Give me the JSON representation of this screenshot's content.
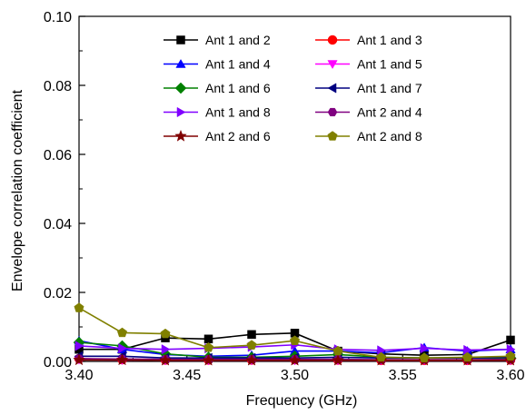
{
  "chart_data": {
    "type": "line",
    "xlabel": "Frequency (GHz)",
    "ylabel": "Envelope correlation coefficient",
    "xlim": [
      3.4,
      3.6
    ],
    "ylim": [
      0,
      0.1
    ],
    "x_ticks": [
      "3.40",
      "3.45",
      "3.50",
      "3.55",
      "3.60"
    ],
    "y_ticks": [
      "0.00",
      "0.02",
      "0.04",
      "0.06",
      "0.08",
      "0.10"
    ],
    "grid": false,
    "legend_position": "top-center",
    "x": [
      3.4,
      3.42,
      3.44,
      3.46,
      3.48,
      3.5,
      3.52,
      3.54,
      3.56,
      3.58,
      3.6
    ],
    "series": [
      {
        "name": "Ant 1 and 2",
        "color": "#000000",
        "marker": "square",
        "values": [
          0.0035,
          0.0035,
          0.0068,
          0.0065,
          0.0078,
          0.0082,
          0.003,
          0.0022,
          0.0018,
          0.002,
          0.0062
        ]
      },
      {
        "name": "Ant 1 and 3",
        "color": "#ff0000",
        "marker": "circle",
        "values": [
          0.0008,
          0.0005,
          0.0004,
          0.0004,
          0.0004,
          0.0005,
          0.0004,
          0.0003,
          0.0003,
          0.0003,
          0.0004
        ]
      },
      {
        "name": "Ant 1 and 4",
        "color": "#0000ff",
        "marker": "triangle-up",
        "values": [
          0.006,
          0.0035,
          0.002,
          0.0015,
          0.0018,
          0.003,
          0.003,
          0.0025,
          0.004,
          0.003,
          0.0035
        ]
      },
      {
        "name": "Ant 1 and 5",
        "color": "#ff00ff",
        "marker": "triangle-down",
        "values": [
          0.0005,
          0.0004,
          0.0003,
          0.0003,
          0.0003,
          0.0003,
          0.0003,
          0.0003,
          0.0003,
          0.0003,
          0.0003
        ]
      },
      {
        "name": "Ant 1 and 6",
        "color": "#008000",
        "marker": "diamond",
        "values": [
          0.0055,
          0.0045,
          0.0022,
          0.0012,
          0.0012,
          0.0015,
          0.002,
          0.0012,
          0.001,
          0.001,
          0.001
        ]
      },
      {
        "name": "Ant 1 and 7",
        "color": "#000080",
        "marker": "triangle-left",
        "values": [
          0.0015,
          0.0015,
          0.001,
          0.001,
          0.001,
          0.001,
          0.0012,
          0.001,
          0.001,
          0.001,
          0.0012
        ]
      },
      {
        "name": "Ant 1 and 8",
        "color": "#8000ff",
        "marker": "triangle-right",
        "values": [
          0.0045,
          0.0038,
          0.0035,
          0.0038,
          0.0042,
          0.0048,
          0.0035,
          0.0032,
          0.0038,
          0.0033,
          0.0035
        ]
      },
      {
        "name": "Ant 2 and 4",
        "color": "#800080",
        "marker": "hexagon",
        "values": [
          0.0008,
          0.0007,
          0.0006,
          0.0006,
          0.0006,
          0.0006,
          0.0006,
          0.0005,
          0.0005,
          0.0005,
          0.0006
        ]
      },
      {
        "name": "Ant 2 and 6",
        "color": "#800000",
        "marker": "star",
        "values": [
          0.0004,
          0.0004,
          0.0003,
          0.0003,
          0.0003,
          0.0003,
          0.0003,
          0.0003,
          0.0003,
          0.0003,
          0.0003
        ]
      },
      {
        "name": "Ant 2 and 8",
        "color": "#808000",
        "marker": "pentagon",
        "values": [
          0.0155,
          0.0083,
          0.008,
          0.004,
          0.0047,
          0.006,
          0.003,
          0.0012,
          0.001,
          0.0012,
          0.0015
        ]
      }
    ]
  }
}
